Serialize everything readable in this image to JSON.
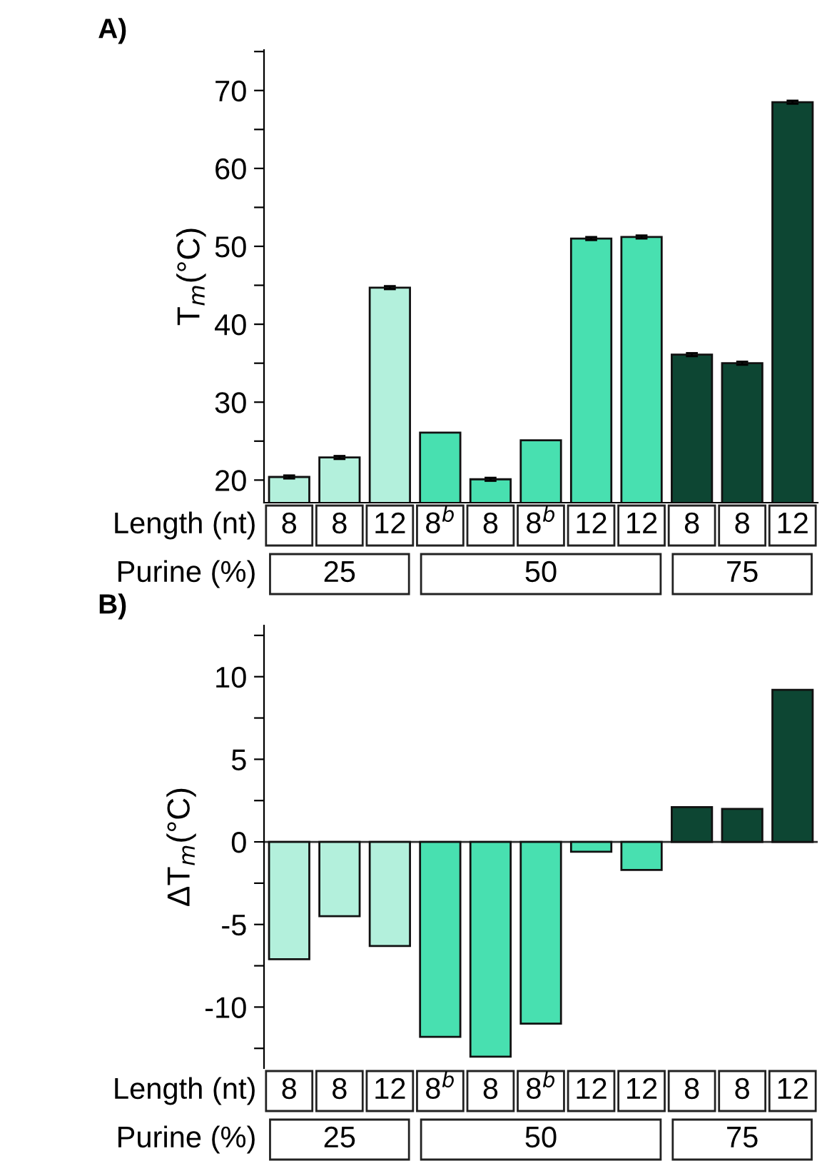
{
  "chart_data": [
    {
      "type": "bar",
      "title": "A)",
      "ylabel": "T$_{m}$(°C)",
      "xlabel": "Length (nt)",
      "categories": [
        "8",
        "8",
        "12",
        "8$^{b}$",
        "8",
        "8$^{b}$",
        "12",
        "12",
        "8",
        "8",
        "12"
      ],
      "values": [
        20.4,
        22.9,
        44.7,
        26.1,
        20.1,
        25.1,
        51.0,
        51.2,
        36.1,
        35.0,
        68.5
      ],
      "errors": [
        0.2,
        0.2,
        0.2,
        null,
        0.2,
        null,
        0.2,
        0.2,
        0.2,
        0.2,
        0.2
      ],
      "colors": [
        "#b3f0dc",
        "#b3f0dc",
        "#b3f0dc",
        "#48e0b0",
        "#48e0b0",
        "#48e0b0",
        "#48e0b0",
        "#48e0b0",
        "#0d4633",
        "#0d4633",
        "#0d4633"
      ],
      "annotations": [
        "Purine (%)",
        "25",
        "50",
        "75"
      ],
      "ylim": [
        17.1,
        75.2
      ],
      "yticks": [
        20,
        {
          "value": 25,
          "label": null
        },
        30,
        {
          "value": 35,
          "label": null
        },
        40,
        {
          "value": 45,
          "label": null
        },
        50,
        {
          "value": 55,
          "label": null
        },
        60,
        {
          "value": 65,
          "label": null
        },
        70,
        {
          "value": 75,
          "label": null
        }
      ],
      "grid": false,
      "legend": false
    },
    {
      "type": "bar",
      "title": "B)",
      "ylabel": "ΔT$_{m}$(°C)",
      "xlabel": "Length (nt)",
      "categories": [
        "8",
        "8",
        "12",
        "8$^{b}$",
        "8",
        "8$^{b}$",
        "12",
        "12",
        "8",
        "8",
        "12"
      ],
      "values": [
        -7.1,
        -4.5,
        -6.3,
        -11.8,
        -13.0,
        -11.0,
        -0.6,
        -1.7,
        2.1,
        2.0,
        9.2
      ],
      "colors": [
        "#b3f0dc",
        "#b3f0dc",
        "#b3f0dc",
        "#48e0b0",
        "#48e0b0",
        "#48e0b0",
        "#48e0b0",
        "#48e0b0",
        "#0d4633",
        "#0d4633",
        "#0d4633"
      ],
      "annotations": [
        "Purine (%)",
        "25",
        "50",
        "75"
      ],
      "ylim": [
        -13.7,
        13.1
      ],
      "ref_lines": [
        {
          "axis": "y",
          "value": 0,
          "color": "#333333"
        }
      ],
      "yticks": [
        {
          "value": -12.5,
          "label": null
        },
        -10,
        {
          "value": -7.5,
          "label": null
        },
        -5,
        {
          "value": -2.5,
          "label": null
        },
        0,
        {
          "value": 2.5,
          "label": null
        },
        5,
        {
          "value": 7.5,
          "label": null
        },
        10,
        {
          "value": 12.5,
          "label": null
        }
      ],
      "grid": false,
      "legend": false
    }
  ]
}
